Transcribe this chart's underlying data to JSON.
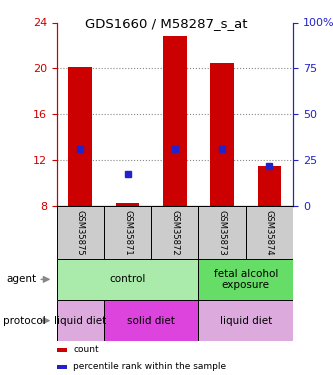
{
  "title": "GDS1660 / M58287_s_at",
  "samples": [
    "GSM35875",
    "GSM35871",
    "GSM35872",
    "GSM35873",
    "GSM35874"
  ],
  "bar_bottoms": [
    8.05,
    8.05,
    8.05,
    8.05,
    8.05
  ],
  "bar_tops": [
    20.1,
    8.25,
    22.8,
    20.5,
    11.5
  ],
  "percentile_values": [
    13.0,
    10.8,
    13.0,
    13.0,
    11.5
  ],
  "left_ylim": [
    8,
    24
  ],
  "left_yticks": [
    8,
    12,
    16,
    20,
    24
  ],
  "right_tick_positions": [
    8,
    12,
    16,
    20,
    24
  ],
  "right_tick_labels": [
    "0",
    "25",
    "50",
    "75",
    "100%"
  ],
  "bar_color": "#cc0000",
  "percentile_color": "#2222cc",
  "agent_groups": [
    {
      "label": "control",
      "span": [
        0,
        3
      ],
      "color": "#aaeaaa"
    },
    {
      "label": "fetal alcohol\nexposure",
      "span": [
        3,
        5
      ],
      "color": "#66dd66"
    }
  ],
  "protocol_groups": [
    {
      "label": "liquid diet",
      "span": [
        0,
        1
      ],
      "color": "#ddaadd"
    },
    {
      "label": "solid diet",
      "span": [
        1,
        3
      ],
      "color": "#dd44dd"
    },
    {
      "label": "liquid diet",
      "span": [
        3,
        5
      ],
      "color": "#ddaadd"
    }
  ],
  "legend_items": [
    {
      "color": "#cc0000",
      "label": "count"
    },
    {
      "color": "#2222cc",
      "label": "percentile rank within the sample"
    }
  ],
  "grid_color": "#888888",
  "bg_color": "#ffffff",
  "left_axis_color": "#cc0000",
  "right_axis_color": "#2222cc",
  "sample_box_color": "#cccccc",
  "arrow_color": "#888888"
}
